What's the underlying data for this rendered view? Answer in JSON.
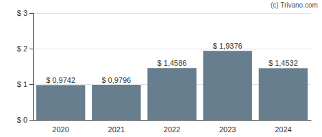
{
  "chart_data": {
    "type": "bar",
    "categories": [
      "2020",
      "2021",
      "2022",
      "2023",
      "2024"
    ],
    "values": [
      0.9742,
      0.9796,
      1.4586,
      1.9376,
      1.4532
    ],
    "value_labels": [
      "$ 0,9742",
      "$ 0,9796",
      "$ 1,4586",
      "$ 1,9376",
      "$ 1,4532"
    ],
    "data_labels": true,
    "color": "#677e8f",
    "ylim": [
      0,
      3
    ],
    "yticks": [
      {
        "value": 0,
        "label": "$ 0"
      },
      {
        "value": 1,
        "label": "$ 1"
      },
      {
        "value": 2,
        "label": "$ 2"
      },
      {
        "value": 3,
        "label": "$ 3"
      }
    ],
    "grid": true,
    "annotations": [
      "(c) Trivano.com"
    ]
  }
}
